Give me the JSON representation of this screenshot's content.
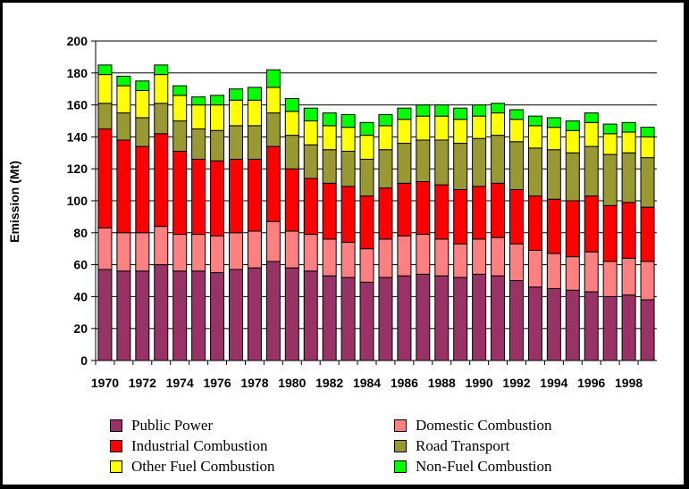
{
  "chart_data": {
    "type": "bar",
    "stacked": true,
    "title": "",
    "xlabel": "",
    "ylabel": "Emission (Mt)",
    "ylim": [
      0,
      200
    ],
    "y_ticks": [
      0,
      20,
      40,
      60,
      80,
      100,
      120,
      140,
      160,
      180,
      200
    ],
    "grid": "horizontal",
    "legend_position": "bottom",
    "categories": [
      "1970",
      "1971",
      "1972",
      "1973",
      "1974",
      "1975",
      "1976",
      "1977",
      "1978",
      "1979",
      "1980",
      "1981",
      "1982",
      "1983",
      "1984",
      "1985",
      "1986",
      "1987",
      "1988",
      "1989",
      "1990",
      "1991",
      "1992",
      "1993",
      "1994",
      "1995",
      "1996",
      "1997",
      "1998",
      "1999"
    ],
    "x_tick_labels": [
      "1970",
      "",
      "1972",
      "",
      "1974",
      "",
      "1976",
      "",
      "1978",
      "",
      "1980",
      "",
      "1982",
      "",
      "1984",
      "",
      "1986",
      "",
      "1988",
      "",
      "1990",
      "",
      "1992",
      "",
      "1994",
      "",
      "1996",
      "",
      "1998",
      ""
    ],
    "series": [
      {
        "name": "Public Power",
        "color": "#993366",
        "values": [
          57,
          56,
          56,
          60,
          56,
          56,
          55,
          57,
          58,
          62,
          58,
          56,
          53,
          52,
          49,
          52,
          53,
          54,
          53,
          52,
          54,
          53,
          50,
          46,
          45,
          44,
          43,
          40,
          41,
          38
        ]
      },
      {
        "name": "Domestic Combustion",
        "color": "#FF8080",
        "values": [
          26,
          24,
          24,
          24,
          23,
          23,
          23,
          23,
          23,
          25,
          23,
          23,
          23,
          22,
          21,
          24,
          25,
          25,
          23,
          21,
          22,
          24,
          23,
          23,
          22,
          21,
          25,
          22,
          23,
          24
        ]
      },
      {
        "name": "Industrial Combustion",
        "color": "#FF0000",
        "values": [
          62,
          58,
          54,
          58,
          52,
          47,
          47,
          46,
          45,
          47,
          39,
          35,
          35,
          35,
          33,
          32,
          33,
          33,
          34,
          34,
          33,
          34,
          34,
          34,
          34,
          35,
          35,
          35,
          35,
          34
        ]
      },
      {
        "name": "Road Transport",
        "color": "#999933",
        "values": [
          16,
          17,
          18,
          19,
          19,
          19,
          19,
          21,
          21,
          21,
          21,
          21,
          21,
          22,
          23,
          24,
          25,
          26,
          28,
          29,
          30,
          30,
          30,
          30,
          31,
          30,
          31,
          32,
          31,
          31
        ]
      },
      {
        "name": "Other Fuel Combustion",
        "color": "#FFFF00",
        "values": [
          18,
          17,
          17,
          18,
          16,
          15,
          16,
          16,
          16,
          16,
          15,
          15,
          15,
          15,
          15,
          15,
          15,
          15,
          15,
          15,
          14,
          14,
          14,
          14,
          14,
          14,
          15,
          13,
          13,
          13
        ]
      },
      {
        "name": "Non-Fuel Combustion",
        "color": "#00FF00",
        "values": [
          6,
          6,
          6,
          6,
          6,
          5,
          6,
          7,
          8,
          11,
          8,
          8,
          8,
          8,
          8,
          7,
          7,
          7,
          7,
          7,
          7,
          6,
          6,
          6,
          6,
          6,
          6,
          6,
          6,
          6
        ]
      }
    ]
  },
  "legend": {
    "items": [
      {
        "label": "Public Power",
        "color": "#993366"
      },
      {
        "label": "Domestic Combustion",
        "color": "#FF8080"
      },
      {
        "label": "Industrial Combustion",
        "color": "#FF0000"
      },
      {
        "label": "Road Transport",
        "color": "#999933"
      },
      {
        "label": "Other Fuel Combustion",
        "color": "#FFFF00"
      },
      {
        "label": "Non-Fuel Combustion",
        "color": "#00FF00"
      }
    ]
  }
}
